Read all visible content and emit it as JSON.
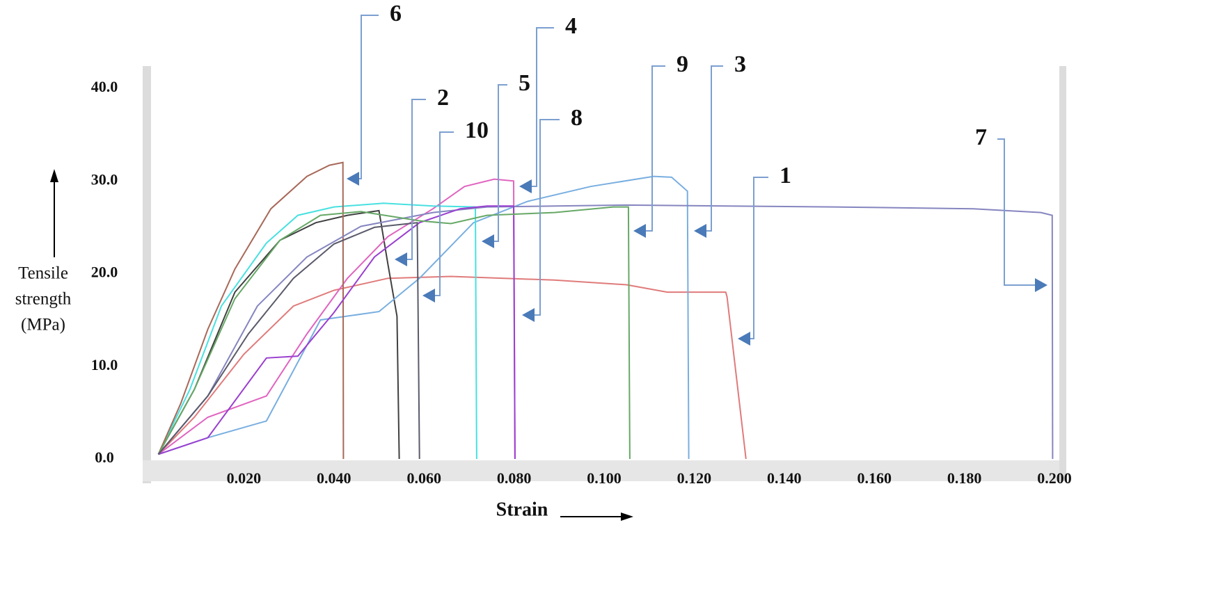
{
  "chart_data": {
    "type": "line",
    "xlabel": "Strain",
    "ylabel": [
      "Tensile",
      "strength",
      "(MPa)"
    ],
    "xlim": [
      0,
      0.2
    ],
    "ylim": [
      0,
      40
    ],
    "xticks": [
      {
        "value": 0.02,
        "label": "0.020"
      },
      {
        "value": 0.04,
        "label": "0.040"
      },
      {
        "value": 0.06,
        "label": "0.060"
      },
      {
        "value": 0.08,
        "label": "0.080"
      },
      {
        "value": 0.1,
        "label": "0.100"
      },
      {
        "value": 0.12,
        "label": "0.120"
      },
      {
        "value": 0.14,
        "label": "0.140"
      },
      {
        "value": 0.16,
        "label": "0.160"
      },
      {
        "value": 0.18,
        "label": "0.180"
      },
      {
        "value": 0.2,
        "label": "0.200"
      }
    ],
    "yticks": [
      {
        "value": 0,
        "label": "0.0"
      },
      {
        "value": 10,
        "label": "10.0"
      },
      {
        "value": 20,
        "label": "20.0"
      },
      {
        "value": 30,
        "label": "30.0"
      },
      {
        "value": 40,
        "label": "40.0"
      }
    ],
    "series": [
      {
        "name": "1",
        "color": "#e07a7a",
        "x": [
          0.001,
          0.009,
          0.02,
          0.031,
          0.04,
          0.052,
          0.066,
          0.089,
          0.105,
          0.114,
          0.127,
          0.1273,
          0.1315
        ],
        "values": [
          0.5,
          4.5,
          11.3,
          16.5,
          18.2,
          19.5,
          19.7,
          19.3,
          18.8,
          18,
          18,
          17.5,
          0
        ]
      },
      {
        "name": "2",
        "color": "#404040",
        "x": [
          0.001,
          0.009,
          0.018,
          0.028,
          0.036,
          0.043,
          0.05,
          0.052,
          0.054,
          0.0545
        ],
        "values": [
          0.5,
          7.5,
          18,
          23.6,
          25.5,
          26.3,
          26.8,
          21,
          15.4,
          0
        ]
      },
      {
        "name": "3",
        "color": "#78aee0",
        "x": [
          0.001,
          0.012,
          0.025,
          0.037,
          0.05,
          0.059,
          0.071,
          0.083,
          0.097,
          0.111,
          0.115,
          0.1185,
          0.1188
        ],
        "values": [
          0.5,
          2.3,
          4.1,
          15,
          15.9,
          19.5,
          25.5,
          27.8,
          29.4,
          30.5,
          30.4,
          28.9,
          0
        ]
      },
      {
        "name": "4",
        "color": "#e064c0",
        "x": [
          0.001,
          0.012,
          0.025,
          0.034,
          0.043,
          0.052,
          0.062,
          0.069,
          0.0756,
          0.0799,
          0.0802
        ],
        "values": [
          0.5,
          4.5,
          6.8,
          13.5,
          19.5,
          24,
          27,
          29.4,
          30.2,
          30,
          0
        ]
      },
      {
        "name": "5",
        "color": "#48e0e0",
        "x": [
          0.001,
          0.008,
          0.015,
          0.025,
          0.032,
          0.04,
          0.051,
          0.062,
          0.0714,
          0.0717
        ],
        "values": [
          0.5,
          7.5,
          16.5,
          23.3,
          26.3,
          27.2,
          27.6,
          27.3,
          27.2,
          0
        ]
      },
      {
        "name": "6",
        "color": "#a86858",
        "x": [
          0.001,
          0.006,
          0.012,
          0.018,
          0.026,
          0.034,
          0.039,
          0.042,
          0.0421
        ],
        "values": [
          0.5,
          6,
          14,
          20.5,
          27,
          30.5,
          31.7,
          32,
          0
        ]
      },
      {
        "name": "7",
        "color": "#8585c0",
        "x": [
          0.001,
          0.012,
          0.023,
          0.034,
          0.046,
          0.062,
          0.074,
          0.105,
          0.151,
          0.182,
          0.197,
          0.1995,
          0.1996
        ],
        "values": [
          0.5,
          6.8,
          16.5,
          21.8,
          25.1,
          26.6,
          27.2,
          27.4,
          27.2,
          27,
          26.6,
          26.3,
          0
        ]
      },
      {
        "name": "8",
        "color": "#9a3fd0",
        "x": [
          0.001,
          0.012,
          0.025,
          0.032,
          0.04,
          0.049,
          0.059,
          0.068,
          0.074,
          0.0799,
          0.0802
        ],
        "values": [
          0.5,
          2.3,
          10.9,
          11.1,
          15.8,
          21.8,
          25.5,
          27,
          27.3,
          27.3,
          0
        ]
      },
      {
        "name": "9",
        "color": "#66a866",
        "x": [
          0.001,
          0.009,
          0.018,
          0.028,
          0.037,
          0.046,
          0.059,
          0.066,
          0.074,
          0.089,
          0.102,
          0.1054,
          0.1057
        ],
        "values": [
          0.5,
          7.5,
          17.3,
          23.6,
          26.3,
          26.7,
          25.7,
          25.4,
          26.3,
          26.6,
          27.2,
          27.2,
          0
        ]
      },
      {
        "name": "10",
        "color": "#5a5a6a",
        "x": [
          0.001,
          0.012,
          0.021,
          0.031,
          0.04,
          0.049,
          0.0585,
          0.059
        ],
        "values": [
          0.5,
          6.8,
          13.5,
          19.5,
          23.2,
          25,
          25.5,
          0
        ]
      }
    ]
  }
}
